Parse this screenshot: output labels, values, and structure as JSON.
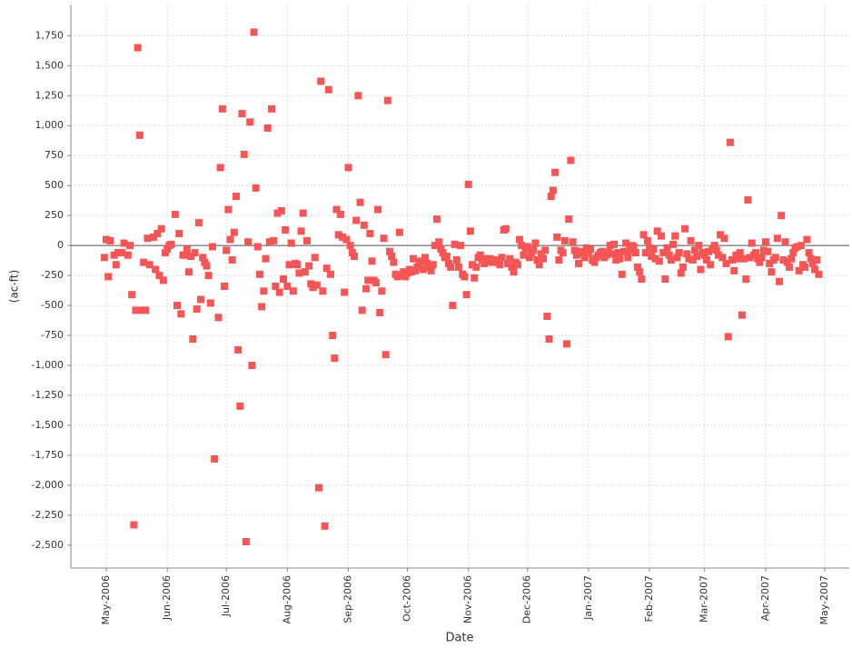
{
  "chart_data": {
    "type": "scatter",
    "x_label": "Date",
    "y_label": "(ac-ft)",
    "color": "#f55555",
    "grid": true,
    "zero_line": true,
    "xlim": [
      -18,
      377.5
    ],
    "ylim": [
      -2690,
      2010
    ],
    "xticks": [
      {
        "value": 0,
        "label": "May-2006"
      },
      {
        "value": 31,
        "label": "Jun-2006"
      },
      {
        "value": 61,
        "label": "Jul-2006"
      },
      {
        "value": 92,
        "label": "Aug-2006"
      },
      {
        "value": 123,
        "label": "Sep-2006"
      },
      {
        "value": 153,
        "label": "Oct-2006"
      },
      {
        "value": 184,
        "label": "Nov-2006"
      },
      {
        "value": 214,
        "label": "Dec-2006"
      },
      {
        "value": 245,
        "label": "Jan-2007"
      },
      {
        "value": 276,
        "label": "Feb-2007"
      },
      {
        "value": 304,
        "label": "Mar-2007"
      },
      {
        "value": 335,
        "label": "Apr-2007"
      },
      {
        "value": 365,
        "label": "May-2007"
      }
    ],
    "yticks": [
      {
        "value": -2500,
        "label": "-2,500"
      },
      {
        "value": -2250,
        "label": "-2,250"
      },
      {
        "value": -2000,
        "label": "-2,000"
      },
      {
        "value": -1750,
        "label": "-1,750"
      },
      {
        "value": -1500,
        "label": "-1,500"
      },
      {
        "value": -1250,
        "label": "-1,250"
      },
      {
        "value": -1000,
        "label": "-1,000"
      },
      -750,
      -500,
      -250,
      0,
      250,
      500,
      750,
      {
        "value": 1000,
        "label": "1,000"
      },
      {
        "value": 1250,
        "label": "1,250"
      },
      {
        "value": 1500,
        "label": "1,500"
      },
      {
        "value": 1750,
        "label": "1,750"
      }
    ],
    "x": [
      -1,
      0,
      1,
      2,
      4,
      5,
      6,
      8,
      9,
      11,
      12,
      13,
      14,
      15,
      16,
      17,
      18,
      19,
      20,
      21,
      22,
      24,
      25,
      26,
      27,
      28,
      29,
      30,
      31,
      32,
      33,
      35,
      36,
      37,
      38,
      39,
      40,
      41,
      42,
      43,
      44,
      45,
      46,
      47,
      48,
      49,
      50,
      51,
      52,
      53,
      54,
      55,
      57,
      58,
      59,
      60,
      61,
      62,
      63,
      64,
      65,
      66,
      67,
      68,
      69,
      70,
      71,
      72,
      73,
      74,
      75,
      76,
      77,
      78,
      79,
      80,
      81,
      82,
      83,
      84,
      85,
      86,
      87,
      88,
      89,
      90,
      91,
      92,
      93,
      94,
      95,
      96,
      97,
      98,
      99,
      100,
      101,
      102,
      103,
      104,
      105,
      106,
      107,
      108,
      109,
      110,
      111,
      112,
      113,
      114,
      115,
      116,
      117,
      118,
      119,
      120,
      121,
      122,
      123,
      124,
      125,
      126,
      127,
      128,
      129,
      130,
      131,
      132,
      133,
      134,
      135,
      136,
      137,
      138,
      139,
      140,
      141,
      142,
      143,
      144,
      145,
      146,
      147,
      148,
      149,
      150,
      151,
      152,
      153,
      154,
      155,
      156,
      157,
      158,
      159,
      160,
      161,
      162,
      163,
      164,
      165,
      166,
      167,
      168,
      169,
      170,
      171,
      172,
      173,
      174,
      175,
      176,
      177,
      178,
      179,
      180,
      181,
      182,
      183,
      184,
      185,
      186,
      187,
      188,
      189,
      190,
      191,
      192,
      193,
      194,
      195,
      196,
      197,
      198,
      199,
      200,
      201,
      202,
      203,
      204,
      205,
      206,
      207,
      208,
      209,
      210,
      211,
      212,
      213,
      214,
      215,
      216,
      217,
      218,
      219,
      220,
      221,
      222,
      223,
      224,
      225,
      226,
      227,
      228,
      229,
      230,
      231,
      232,
      233,
      234,
      235,
      236,
      237,
      238,
      239,
      240,
      241,
      242,
      243,
      244,
      245,
      246,
      247,
      248,
      249,
      250,
      251,
      252,
      253,
      254,
      255,
      256,
      257,
      258,
      259,
      260,
      261,
      262,
      263,
      264,
      265,
      266,
      267,
      268,
      269,
      270,
      271,
      272,
      273,
      274,
      275,
      276,
      277,
      278,
      279,
      280,
      281,
      282,
      283,
      284,
      285,
      286,
      287,
      288,
      289,
      290,
      291,
      292,
      293,
      294,
      295,
      296,
      297,
      298,
      299,
      300,
      301,
      302,
      303,
      304,
      305,
      306,
      307,
      308,
      309,
      310,
      311,
      312,
      313,
      314,
      315,
      316,
      317,
      318,
      319,
      320,
      321,
      322,
      323,
      324,
      325,
      326,
      327,
      328,
      329,
      330,
      331,
      332,
      333,
      334,
      335,
      336,
      337,
      338,
      339,
      340,
      341,
      342,
      343,
      344,
      345,
      346,
      347,
      348,
      349,
      350,
      351,
      352,
      353,
      354,
      355,
      356,
      357,
      358,
      359,
      360,
      361,
      362
    ],
    "values": [
      -100,
      50,
      -260,
      40,
      -80,
      -160,
      -60,
      -60,
      20,
      -80,
      0,
      -410,
      -2330,
      -540,
      1650,
      920,
      -540,
      -140,
      -540,
      60,
      -160,
      70,
      -200,
      100,
      -250,
      140,
      -290,
      -60,
      -30,
      0,
      10,
      260,
      -500,
      100,
      -570,
      -80,
      -80,
      -30,
      -220,
      -90,
      -780,
      -60,
      -530,
      190,
      -450,
      -100,
      -140,
      -170,
      -250,
      -480,
      -10,
      -1780,
      -600,
      650,
      1140,
      -340,
      -40,
      300,
      50,
      -120,
      110,
      410,
      -870,
      -1340,
      1100,
      760,
      -2470,
      30,
      1030,
      -1000,
      1780,
      480,
      -10,
      -240,
      -510,
      -380,
      -110,
      980,
      30,
      1140,
      40,
      -340,
      270,
      -390,
      290,
      -280,
      130,
      -340,
      -160,
      20,
      -380,
      -150,
      -160,
      -230,
      120,
      270,
      -220,
      40,
      -170,
      -320,
      -350,
      -100,
      -330,
      -2020,
      1370,
      -380,
      -2340,
      -190,
      1300,
      -240,
      -750,
      -940,
      300,
      90,
      260,
      70,
      -390,
      50,
      650,
      0,
      -60,
      -90,
      210,
      1250,
      360,
      -540,
      170,
      -360,
      -290,
      100,
      -130,
      -290,
      -310,
      300,
      -560,
      -380,
      60,
      -910,
      1210,
      -50,
      -90,
      -140,
      -240,
      -260,
      110,
      -250,
      -220,
      -260,
      -230,
      -200,
      -220,
      -110,
      -210,
      -180,
      -140,
      -130,
      -200,
      -100,
      -150,
      -180,
      -210,
      -160,
      0,
      220,
      30,
      -30,
      -60,
      -100,
      -90,
      -150,
      -180,
      -500,
      10,
      -120,
      -180,
      0,
      -240,
      -260,
      -410,
      510,
      120,
      -160,
      -270,
      -180,
      -100,
      -80,
      -120,
      -150,
      -110,
      -130,
      -110,
      -140,
      -120,
      -120,
      -140,
      -160,
      -100,
      130,
      140,
      -150,
      -110,
      -180,
      -220,
      -140,
      -160,
      50,
      0,
      -80,
      -30,
      -10,
      -100,
      -60,
      -40,
      20,
      -120,
      -160,
      -70,
      -110,
      -40,
      -590,
      -780,
      410,
      460,
      610,
      70,
      -120,
      -40,
      -60,
      40,
      -820,
      220,
      710,
      30,
      -40,
      -80,
      -150,
      -50,
      -60,
      -100,
      -20,
      -60,
      -30,
      -120,
      -140,
      -100,
      -80,
      -60,
      -50,
      -100,
      -80,
      -60,
      0,
      -70,
      10,
      -120,
      -60,
      -110,
      -240,
      -50,
      20,
      -100,
      -40,
      0,
      -10,
      -60,
      -180,
      -220,
      -280,
      90,
      -60,
      40,
      -20,
      -90,
      -30,
      -110,
      120,
      -130,
      80,
      -60,
      -280,
      -20,
      -80,
      -120,
      10,
      80,
      -100,
      -60,
      -230,
      -180,
      140,
      -70,
      -110,
      40,
      -120,
      -40,
      -90,
      0,
      -200,
      -60,
      -80,
      -120,
      -50,
      -160,
      -30,
      0,
      -40,
      -80,
      90,
      -100,
      60,
      -150,
      -760,
      860,
      -120,
      -210,
      -80,
      -110,
      -60,
      -580,
      -110,
      -280,
      380,
      -100,
      20,
      -80,
      -60,
      -110,
      -140,
      -100,
      -40,
      30,
      -50,
      -150,
      -220,
      -120,
      -100,
      60,
      -300,
      250,
      -120,
      30,
      -140,
      -180,
      -110,
      -60,
      -20,
      -10,
      -210,
      0,
      -160,
      -180,
      50,
      -60,
      -110,
      -150,
      -200,
      -120,
      -240
    ]
  }
}
